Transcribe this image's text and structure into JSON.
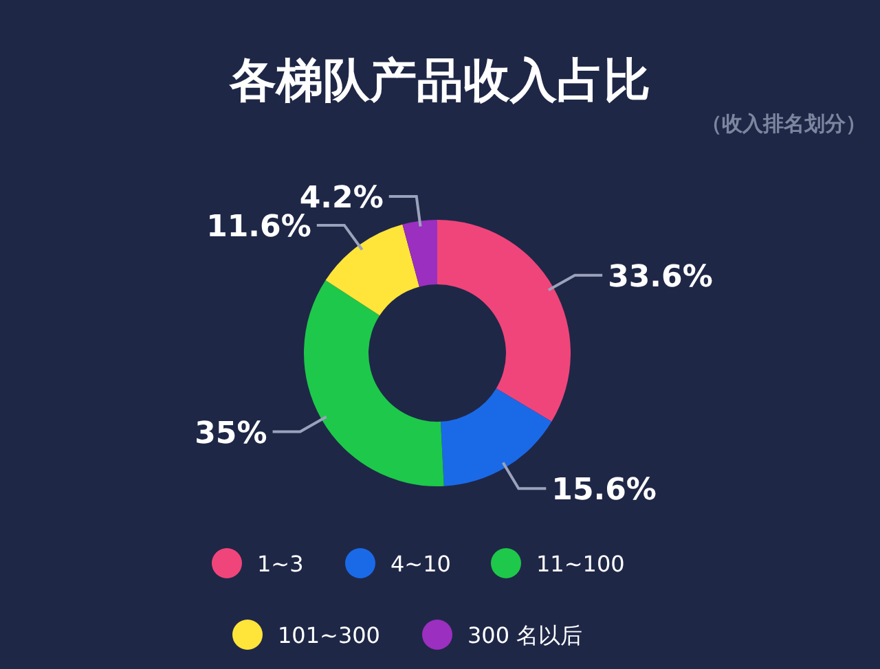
{
  "chart_data": {
    "type": "donut",
    "title": "各梯队产品收入占比",
    "subtitle": "（收入排名划分）",
    "categories": [
      "1~3",
      "4~10",
      "11~100",
      "101~300",
      "300 名以后"
    ],
    "values": [
      33.6,
      15.6,
      35,
      11.6,
      4.2
    ],
    "value_labels": [
      "33.6%",
      "15.6%",
      "35%",
      "11.6%",
      "4.2%"
    ],
    "colors": [
      "#f0457a",
      "#1a6ae8",
      "#1ec84a",
      "#ffe53a",
      "#9b2fbf"
    ],
    "legend": "bottom"
  }
}
